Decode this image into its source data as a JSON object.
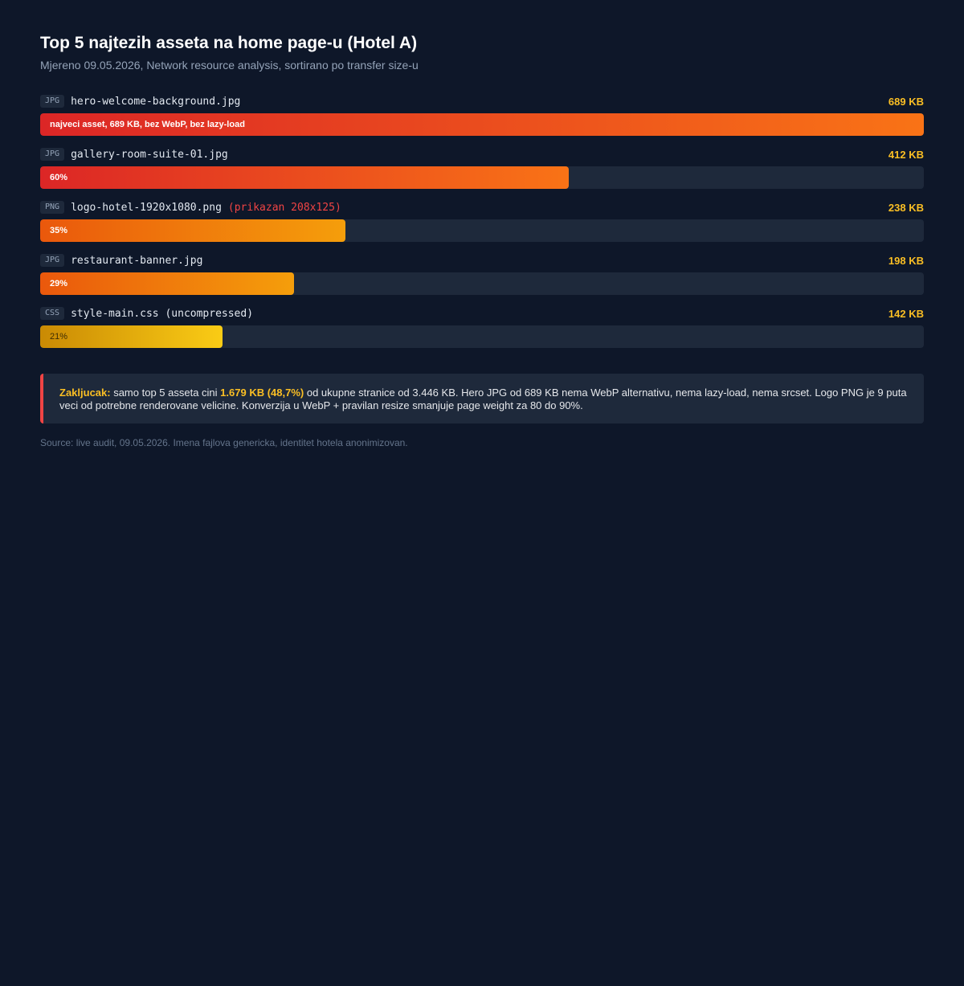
{
  "header": {
    "title": "Top 5 najtezih asseta na home page-u (Hotel A)",
    "subtitle": "Mjereno 09.05.2026, Network resource analysis, sortirano po transfer size-u"
  },
  "chart_data": {
    "type": "bar",
    "orientation": "horizontal",
    "title": "Top 5 najtezih asseta na home page-u (Hotel A)",
    "xlim": [
      0,
      689
    ],
    "unit": "KB",
    "items": [
      {
        "type": "JPG",
        "name": "hero-welcome-background.jpg",
        "note": "",
        "value": 689,
        "size_label": "689 KB",
        "bar_label": "najveci asset, 689 KB, bez WebP, bez lazy-load",
        "color": "#f97316"
      },
      {
        "type": "JPG",
        "name": "gallery-room-suite-01.jpg",
        "note": "",
        "value": 412,
        "size_label": "412 KB",
        "bar_label": "60%",
        "color": "#f97316"
      },
      {
        "type": "PNG",
        "name": "logo-hotel-1920x1080.png",
        "note": "(prikazan 208x125)",
        "value": 238,
        "size_label": "238 KB",
        "bar_label": "35%",
        "color": "#f59e0b"
      },
      {
        "type": "JPG",
        "name": "restaurant-banner.jpg",
        "note": "",
        "value": 198,
        "size_label": "198 KB",
        "bar_label": "29%",
        "color": "#f59e0b"
      },
      {
        "type": "CSS",
        "name": "style-main.css (uncompressed)",
        "note": "",
        "value": 142,
        "size_label": "142 KB",
        "bar_label": "21%",
        "color": "#facc15"
      }
    ]
  },
  "conclusion": {
    "label": "Zakljucak:",
    "text1": " samo top 5 asseta cini ",
    "highlight": "1.679 KB (48,7%)",
    "text2": " od ukupne stranice od 3.446 KB. Hero JPG od 689 KB nema WebP alternativu, nema lazy-load, nema srcset. Logo PNG je 9 puta veci od potrebne renderovane velicine. Konverzija u WebP + pravilan resize smanjuje page weight za 80 do 90%."
  },
  "source": "Source: live audit, 09.05.2026. Imena fajlova genericka, identitet hotela anonimizovan."
}
